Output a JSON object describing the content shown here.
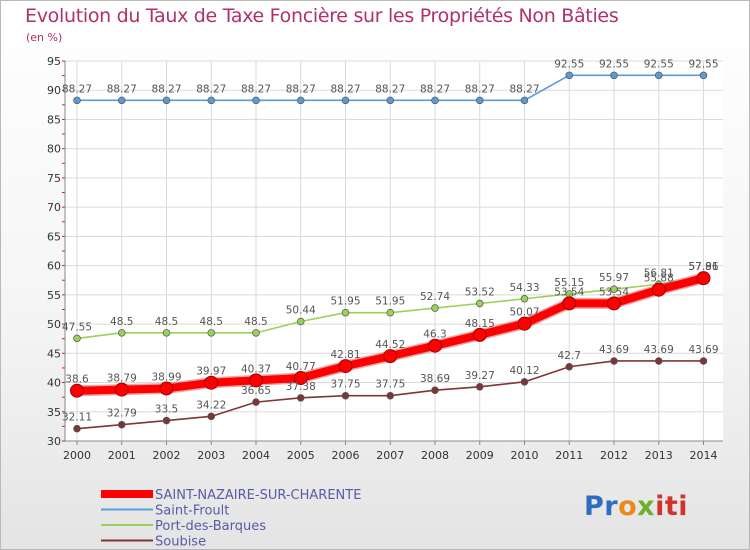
{
  "chart_data": {
    "type": "line",
    "title": "Evolution du Taux de Taxe Foncière sur les Propriétés Non Bâties",
    "ylabel": "(en %)",
    "xlabel": "",
    "ylim": [
      30,
      95
    ],
    "yticks": [
      30,
      35,
      40,
      45,
      50,
      55,
      60,
      65,
      70,
      75,
      80,
      85,
      90,
      95
    ],
    "categories": [
      "2000",
      "2001",
      "2002",
      "2003",
      "2004",
      "2005",
      "2006",
      "2007",
      "2008",
      "2009",
      "2010",
      "2011",
      "2012",
      "2013",
      "2014"
    ],
    "grid": true,
    "legend_position": "bottom-left",
    "series": [
      {
        "name": "SAINT-NAZAIRE-SUR-CHARENTE",
        "color": "#ff0000",
        "values": [
          38.6,
          38.79,
          38.99,
          39.97,
          40.37,
          40.77,
          42.81,
          44.52,
          46.3,
          48.15,
          50.07,
          53.54,
          53.54,
          55.88,
          57.86
        ],
        "labels": [
          "38.6",
          "38.79",
          "38.99",
          "39.97",
          "40.37",
          "40.77",
          "42.81",
          "44.52",
          "46.3",
          "48.15",
          "50.07",
          "53.54",
          "53.54",
          "55.88",
          "57.86"
        ]
      },
      {
        "name": "Saint-Froult",
        "color": "#5b9bd5",
        "values": [
          88.27,
          88.27,
          88.27,
          88.27,
          88.27,
          88.27,
          88.27,
          88.27,
          88.27,
          88.27,
          88.27,
          92.55,
          92.55,
          92.55,
          92.55
        ],
        "labels": [
          "88.27",
          "88.27",
          "88.27",
          "88.27",
          "88.27",
          "88.27",
          "88.27",
          "88.27",
          "88.27",
          "88.27",
          "88.27",
          "92.55",
          "92.55",
          "92.55",
          "92.55"
        ]
      },
      {
        "name": "Port-des-Barques",
        "color": "#9ad15a",
        "values": [
          47.55,
          48.5,
          48.5,
          48.5,
          48.5,
          50.44,
          51.95,
          51.95,
          52.74,
          53.52,
          54.33,
          55.15,
          55.97,
          56.81,
          57.91
        ],
        "labels": [
          "47.55",
          "48.5",
          "48.5",
          "48.5",
          "48.5",
          "50.44",
          "51.95",
          "51.95",
          "52.74",
          "53.52",
          "54.33",
          "55.15",
          "55.97",
          "56.81",
          "57.91"
        ]
      },
      {
        "name": "Soubise",
        "color": "#7d3535",
        "values": [
          32.11,
          32.79,
          33.5,
          34.22,
          36.65,
          37.38,
          37.75,
          37.75,
          38.69,
          39.27,
          40.12,
          42.7,
          43.69,
          43.69,
          43.69
        ],
        "labels": [
          "32.11",
          "32.79",
          "33.5",
          "34.22",
          "36.65",
          "37.38",
          "37.75",
          "37.75",
          "38.69",
          "39.27",
          "40.12",
          "42.7",
          "43.69",
          "43.69",
          "43.69"
        ]
      }
    ]
  },
  "logo": {
    "part1": "Pr",
    "part2": "o",
    "part3": "x",
    "part4": "iti"
  }
}
